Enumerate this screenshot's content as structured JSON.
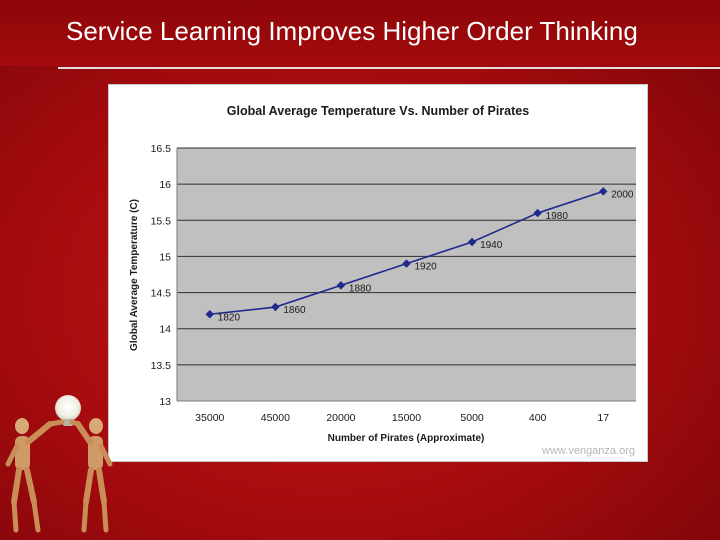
{
  "slide": {
    "title": "Service Learning Improves Higher Order Thinking"
  },
  "colors": {
    "background": "#a40b0e",
    "title_text": "#ffffff",
    "plot_area": "#c0c0c0",
    "series_line": "#1f2a8c"
  },
  "chart_credit": "www.venganza.org",
  "decoration_icon": "wooden-mannequins-holding-lightbulb-icon",
  "chart_data": {
    "type": "line",
    "title": "Global Average Temperature Vs. Number of Pirates",
    "xlabel": "Number of Pirates (Approximate)",
    "ylabel": "Global Average Temperature (C)",
    "categories": [
      "35000",
      "45000",
      "20000",
      "15000",
      "5000",
      "400",
      "17"
    ],
    "ylim": [
      13,
      16.5
    ],
    "yticks": [
      "16.5",
      "16",
      "15.5",
      "15",
      "14.5",
      "14",
      "13.5",
      "13"
    ],
    "grid": "horizontal",
    "legend": "none",
    "series": [
      {
        "values": [
          14.2,
          14.3,
          14.6,
          14.9,
          15.2,
          15.6,
          15.9
        ],
        "point_labels": [
          "1820",
          "1860",
          "1880",
          "1920",
          "1940",
          "1980",
          "2000"
        ]
      }
    ]
  }
}
